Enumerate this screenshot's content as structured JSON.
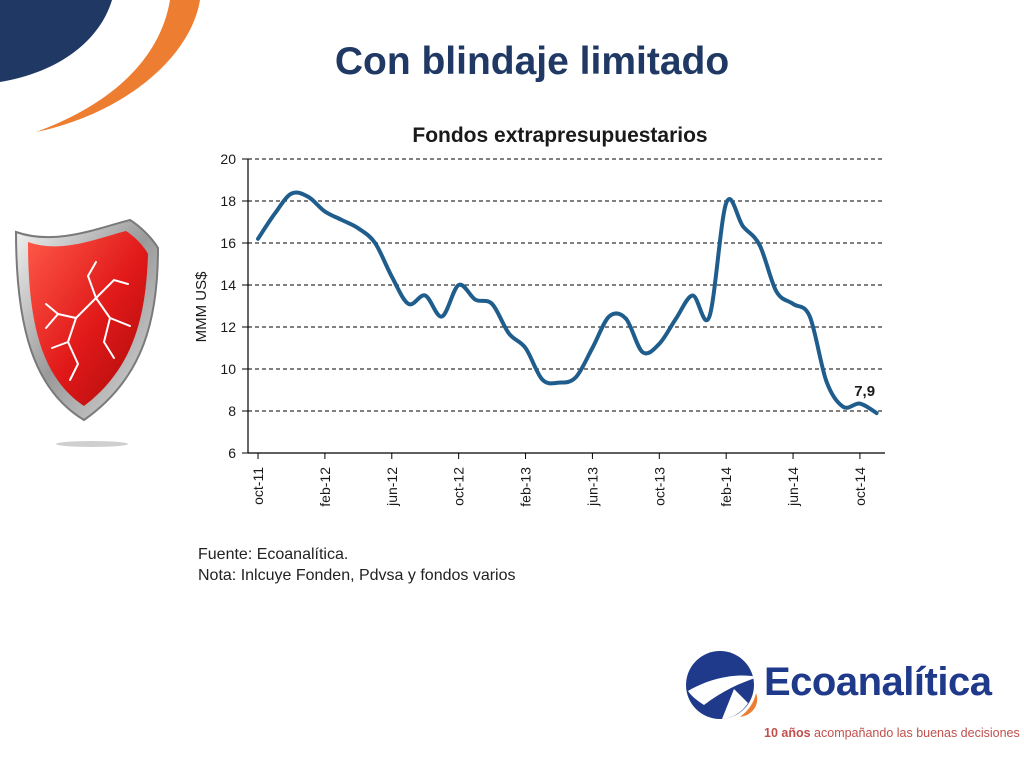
{
  "slide": {
    "title": "Con blindaje limitado",
    "source": "Fuente: Ecoanalítica.",
    "note": "Nota: Inlcuye Fonden, Pdvsa y fondos varios"
  },
  "logo": {
    "wordmark": "Ecoanalítica",
    "tagline_years": "10 años",
    "tagline_rest": " acompañando las buenas decisiones"
  },
  "colors": {
    "title": "#1f3864",
    "series": "#1f5d8c",
    "orange_accent": "#ed7d31",
    "navy_accent": "#1f3864",
    "shield_red": "#e02020"
  },
  "chart_data": {
    "type": "line",
    "title": "Fondos extrapresupuestarios",
    "ylabel": "MMM US$",
    "xlabel": "",
    "ylim": [
      6,
      20
    ],
    "yticks": [
      6,
      8,
      10,
      12,
      14,
      16,
      18,
      20
    ],
    "grid": "horizontal dashed",
    "x_tick_labels": [
      "oct-11",
      "feb-12",
      "jun-12",
      "oct-12",
      "feb-13",
      "jun-13",
      "oct-13",
      "feb-14",
      "jun-14",
      "oct-14"
    ],
    "x_tick_positions": [
      0,
      4,
      8,
      12,
      16,
      20,
      24,
      28,
      32,
      36
    ],
    "series": [
      {
        "points": [
          [
            0,
            16.2
          ],
          [
            1,
            17.4
          ],
          [
            2,
            18.35
          ],
          [
            3,
            18.2
          ],
          [
            4,
            17.5
          ],
          [
            5,
            17.1
          ],
          [
            6,
            16.7
          ],
          [
            7,
            16.0
          ],
          [
            8,
            14.4
          ],
          [
            9,
            13.1
          ],
          [
            10,
            13.5
          ],
          [
            11,
            12.5
          ],
          [
            12,
            14.0
          ],
          [
            13,
            13.3
          ],
          [
            14,
            13.1
          ],
          [
            15,
            11.7
          ],
          [
            16,
            11.0
          ],
          [
            17,
            9.5
          ],
          [
            18,
            9.35
          ],
          [
            19,
            9.6
          ],
          [
            20,
            11.0
          ],
          [
            21,
            12.5
          ],
          [
            22,
            12.4
          ],
          [
            23,
            10.8
          ],
          [
            24,
            11.2
          ],
          [
            25,
            12.4
          ],
          [
            26,
            13.5
          ],
          [
            27,
            12.5
          ],
          [
            28,
            17.9
          ],
          [
            29,
            16.8
          ],
          [
            30,
            15.9
          ],
          [
            31,
            13.7
          ],
          [
            32,
            13.1
          ],
          [
            33,
            12.5
          ],
          [
            34,
            9.4
          ],
          [
            35,
            8.2
          ],
          [
            36,
            8.35
          ],
          [
            37,
            7.9
          ]
        ]
      }
    ],
    "annotations": [
      {
        "x": 37,
        "y": 7.9,
        "text": "7,9"
      }
    ]
  }
}
